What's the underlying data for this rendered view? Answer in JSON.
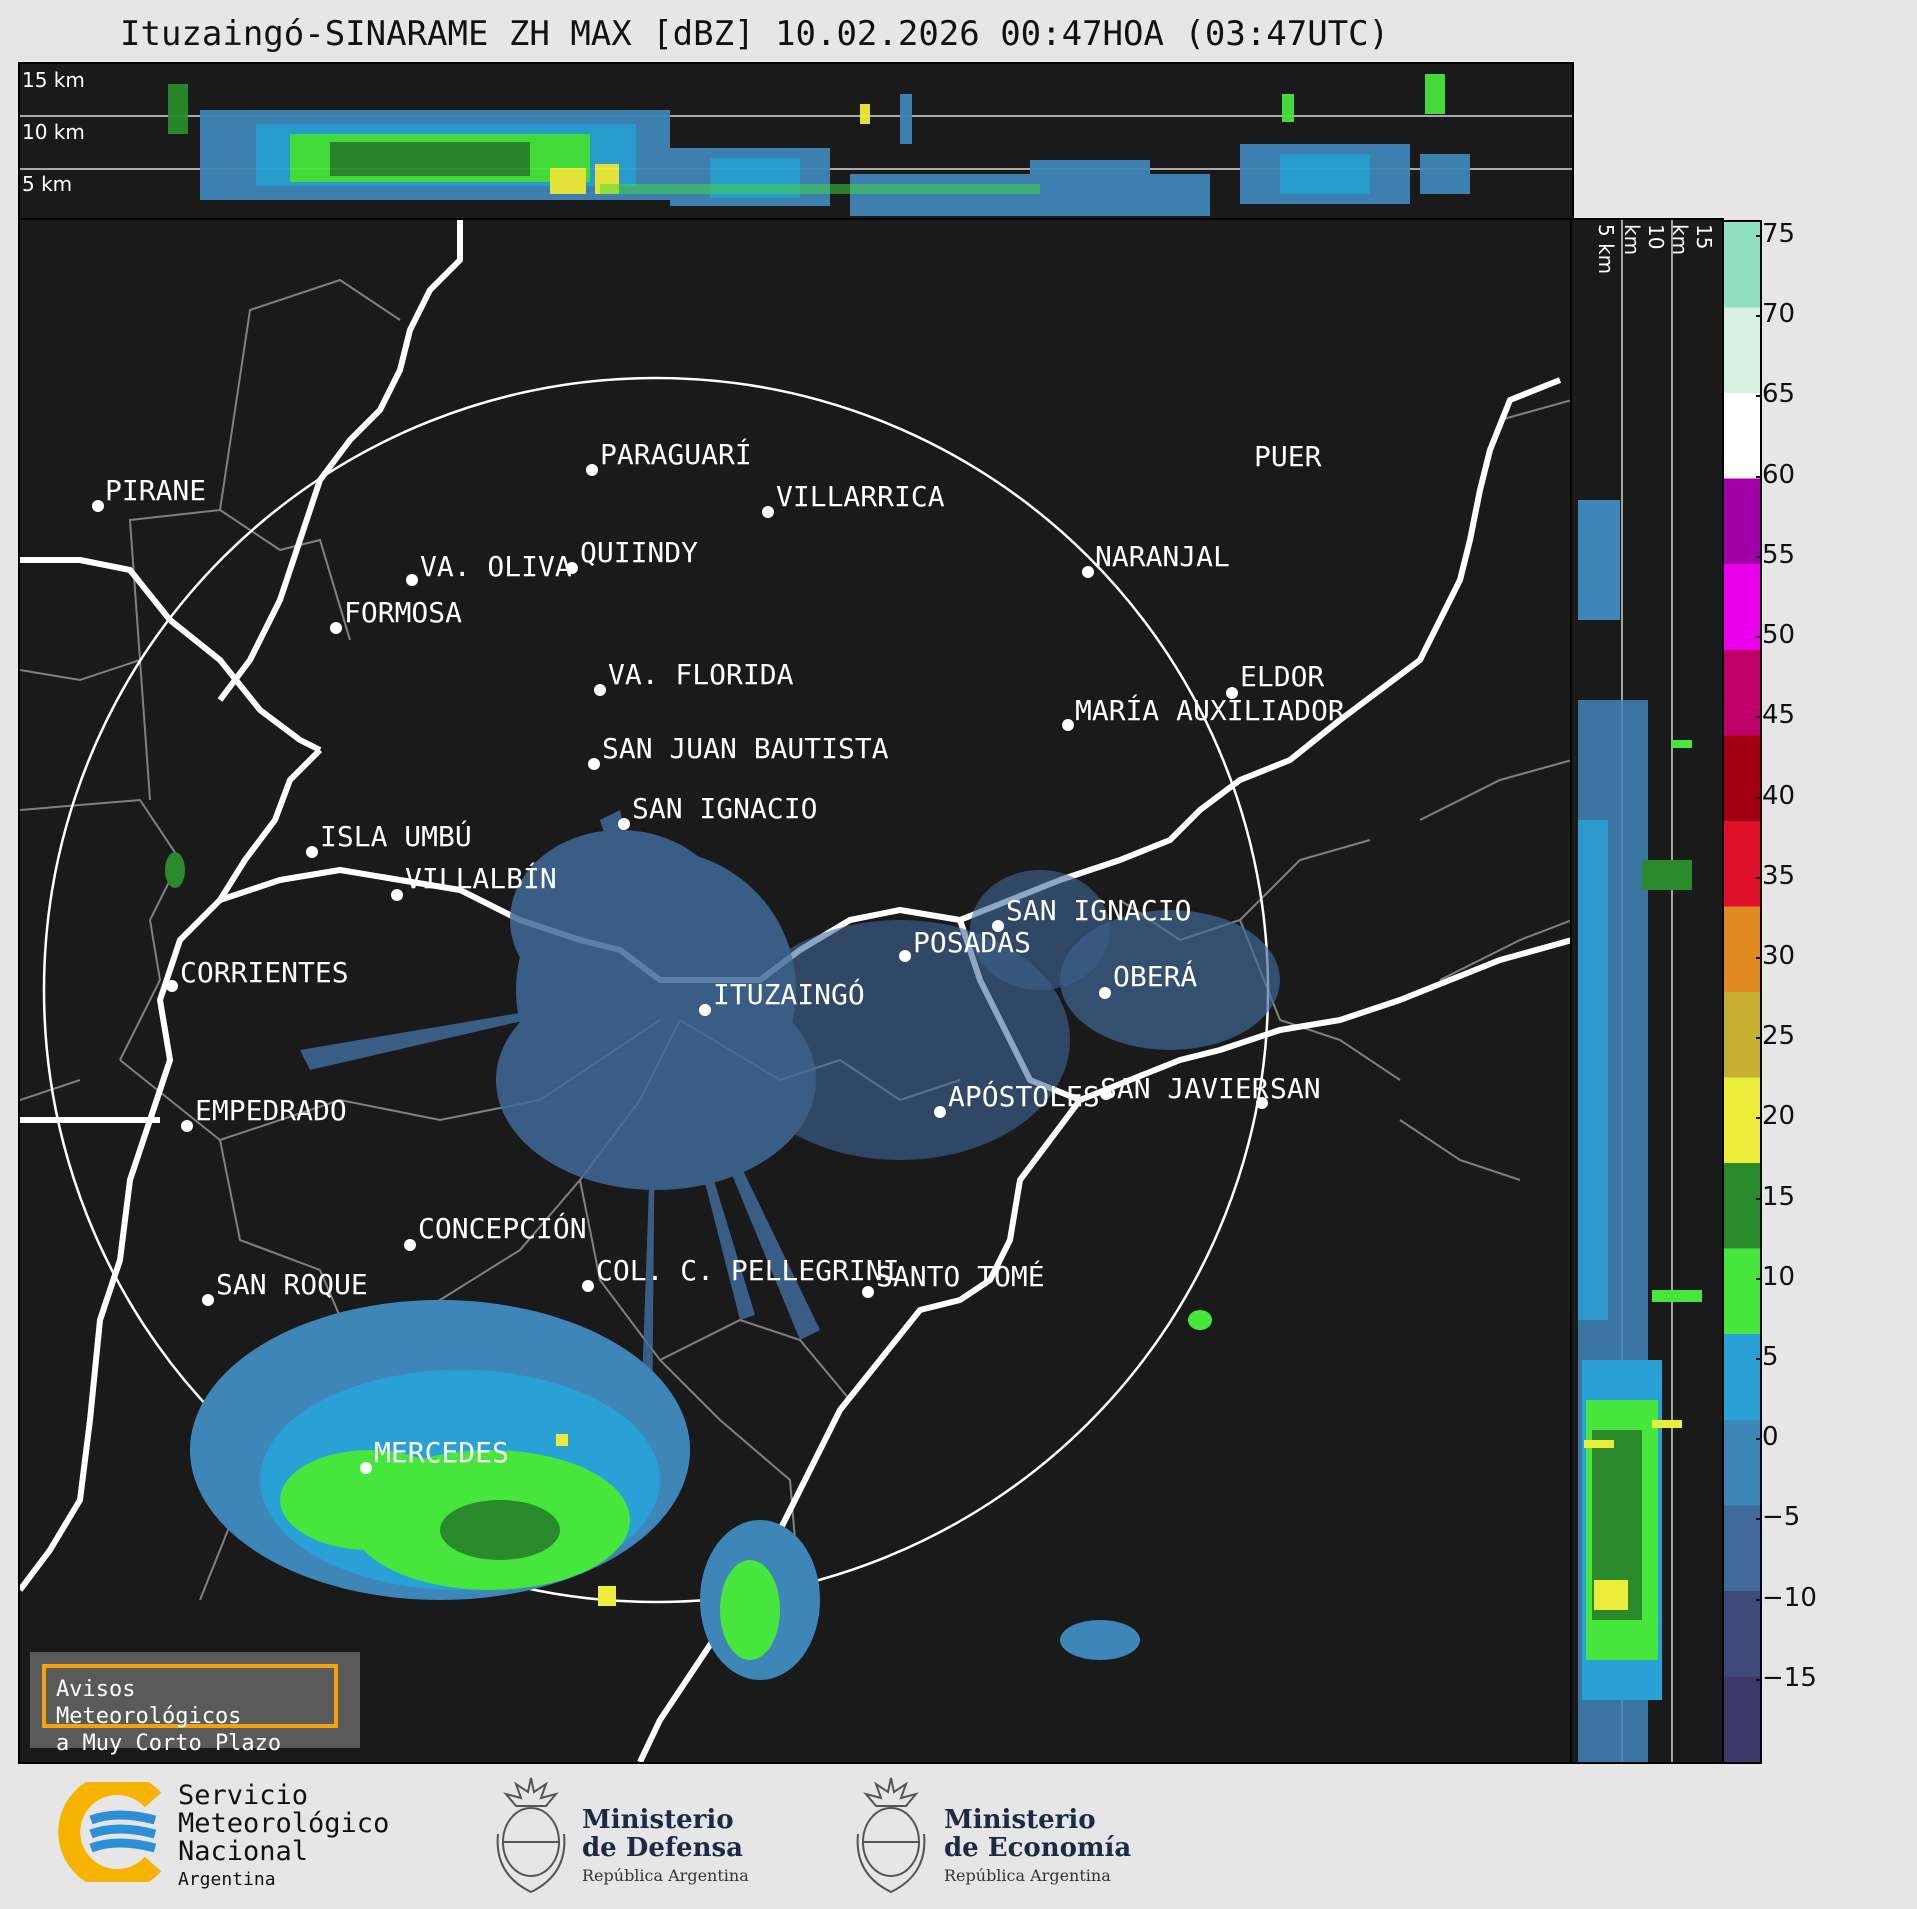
{
  "title": "Ituzaingó-SINARAME ZH MAX [dBZ] 10.02.2026 00:47HOA (03:47UTC)",
  "top_strip_labels": [
    "15 km",
    "10 km",
    "5 km"
  ],
  "right_strip_labels": [
    "5 km",
    "10 km",
    "15 km"
  ],
  "colorbar": {
    "ticks": [
      "75",
      "70",
      "65",
      "60",
      "55",
      "50",
      "45",
      "40",
      "35",
      "30",
      "25",
      "20",
      "15",
      "10",
      "5",
      "0",
      "−5",
      "−10",
      "−15"
    ],
    "range": [
      -20,
      76
    ],
    "colors": [
      "#3a3a6a",
      "#3d4a7a",
      "#406a9a",
      "#3f86b8",
      "#2aa1d6",
      "#46e63c",
      "#2b8a2b",
      "#ecec3a",
      "#c8b030",
      "#e08a20",
      "#e0102a",
      "#a00010",
      "#c0006a",
      "#ea00ea",
      "#a000a8",
      "#ffffff",
      "#d8f0e0",
      "#8fe0c0"
    ]
  },
  "cities": [
    "PIRANE",
    "PARAGUARÍ",
    "VILLARRICA",
    "QUIINDY",
    "VA. OLIVA",
    "FORMOSA",
    "NARANJAL",
    "PUER",
    "VA. FLORIDA",
    "ELDOR",
    "MARÍA AUXILIADOR",
    "SAN JUAN BAUTISTA",
    "SAN IGNACIO",
    "ISLA UMBÚ",
    "VILLALBÍN",
    "SAN IGNACIO",
    "POSADAS",
    "CORRIENTES",
    "ITUZAINGÓ",
    "OBERÁ",
    "APÓSTOLES",
    "SAN JAVIER",
    "SAN",
    "EMPEDRADO",
    "CONCEPCIÓN",
    "COL. C. PELLEGRINI",
    "SANTO TOMÉ",
    "SAN ROQUE",
    "MERCEDES"
  ],
  "notice": {
    "line1": "Avisos Meteorológicos",
    "line2": "a Muy Corto Plazo"
  },
  "logos": {
    "smn": {
      "line1": "Servicio",
      "line2": "Meteorológico",
      "line3": "Nacional",
      "line4": "Argentina"
    },
    "defensa": {
      "line1": "Ministerio",
      "line2": "de Defensa",
      "line3": "República Argentina"
    },
    "economia": {
      "line1": "Ministerio",
      "line2": "de Economía",
      "line3": "República Argentina"
    }
  },
  "colors": {
    "background": "#1a1a1a",
    "frame": "#e6e6e6",
    "notice_border": "#f2a20c",
    "logo_blue": "#2d8fd6",
    "logo_yellow": "#f6b400"
  }
}
